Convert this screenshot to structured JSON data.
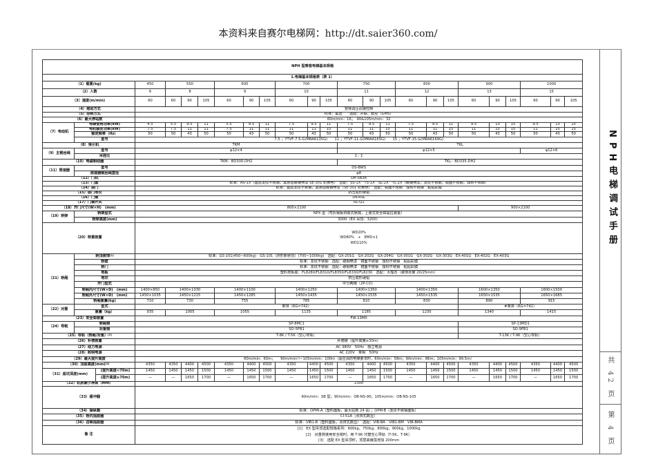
{
  "header_note": "本资料来自赛尔电梯网：http://dt.saier360.com/",
  "side": {
    "title": "NPH电梯调试手册",
    "total_pages": "共 42 页",
    "page": "第 4 页"
  },
  "table": {
    "title": "NPH 型乘客电梯基本规格",
    "section": "1.电梯基本规格表（表 1）"
  },
  "rows": {
    "r1": {
      "label": "（1）载重(kg)",
      "values": [
        "450",
        "550",
        "600",
        "700",
        "750",
        "800",
        "900",
        "1000"
      ]
    },
    "r2": {
      "label": "（2）人数",
      "values": [
        "6",
        "8",
        "9",
        "10",
        "11",
        "12",
        "13",
        "15"
      ]
    },
    "r3": {
      "label": "（3）速度(m/min)",
      "values": [
        "60",
        "60",
        "90",
        "105",
        "60",
        "90",
        "105",
        "60",
        "90",
        "105",
        "60",
        "90",
        "105",
        "60",
        "90",
        "105",
        "60",
        "90",
        "105",
        "60",
        "90",
        "105"
      ]
    },
    "r4": {
      "label": "（4）拖动方式",
      "value": "变频调压调速控制"
    },
    "r5": {
      "label": "（5）控制方式",
      "value": "标准：集选　　选配：并联、群控（GMS）"
    },
    "r6": {
      "label": "（6）最大停站数",
      "value": "60m/min：16；　90&105m/min：32"
    },
    "r7": {
      "label": "（7）电动机",
      "sub": [
        {
          "label": "电梯使用功率(kW)",
          "values": [
            "4.5",
            "5.5",
            "9.5",
            "11",
            "5.5",
            "9.5",
            "11",
            "7.5",
            "9.5",
            "11",
            "7.5",
            "9.5",
            "11",
            "7.5",
            "9.5",
            "11",
            "9.5",
            "13",
            "15",
            "9.5",
            "13",
            "15"
          ]
        },
        {
          "label": "电机额定功率(kW)",
          "values": [
            "7.5",
            "7.5",
            "11",
            "11",
            "7.5",
            "11",
            "11",
            "11",
            "11",
            "15",
            "11",
            "11",
            "15",
            "11",
            "11",
            "15",
            "11",
            "15",
            "15",
            "11",
            "15",
            "15"
          ]
        },
        {
          "label": "额定频率（Hz）",
          "values": [
            "50",
            "50",
            "43",
            "50",
            "50",
            "43",
            "50",
            "50",
            "43",
            "50",
            "50",
            "43",
            "50",
            "50",
            "43",
            "50",
            "50",
            "43",
            "50",
            "50",
            "43",
            "50"
          ]
        },
        {
          "label": "型号",
          "value": "7.5 ；YTVF-7.5-G(MRA6135G)　　11 ；YTVF-11-G(MRA6165G)　　15 ；YTVF-15-G(MRA6169G)"
        }
      ]
    },
    "r8": {
      "label": "（8）曳引机",
      "values": [
        "TKM",
        "TKL"
      ]
    },
    "r9": {
      "label": "（9）主钢丝绳",
      "sub": [
        {
          "label": "型号",
          "values": [
            "φ12×4",
            "φ12×5",
            "φ12×6"
          ]
        },
        {
          "label": "吊挂比",
          "value": "1 : 1"
        }
      ]
    },
    "r10": {
      "label": "（10）电磁制动器",
      "values": [
        "TKM：BD300-DH2",
        "TKL：BD335-DH2"
      ]
    },
    "r11": {
      "label": "（11）限速器",
      "sub": [
        {
          "label": "型号",
          "value": "DS-BWS"
        },
        {
          "label": "限速器钢丝绳直径",
          "value": "φ8"
        }
      ]
    },
    "r12": {
      "label": "（12）门机",
      "value": "LM-SB3A"
    },
    "r13": {
      "label": "（13）门套",
      "value": "标准：AS-1X（首层发纹不锈钢，其余层碳钢喷漆 SE-301 奶黄色）　选配：SS-1X　TS-1X　SL-2X　TL-2X（碳钢喷漆，发纹不锈钢，镜面不锈钢，蚀刻不锈钢）"
    },
    "r14": {
      "label": "（14）层门",
      "value": "标准：首层发纹不锈钢，其余层碳钢喷漆（SE-301 奶黄色）　选配：镜面不锈钢　蚀刻不锈钢　粘贴彩膜"
    },
    "r15": {
      "label": "（15）层门地坎",
      "value": "挤压成形硬铝"
    },
    "r16": {
      "label": "（16）门锁",
      "value": "DK-RSL"
    },
    "r17": {
      "label": "（17）门锁开关",
      "value": "UL-Q1"
    },
    "r18": {
      "label": "（18）开门尺寸(W×H)　(mm)",
      "values": [
        "800×2100",
        "900×2100"
      ]
    },
    "r19": {
      "label": "（19）轿架",
      "sub": [
        {
          "label": "轿架型式",
          "value": "NPX 型（弯折钢板拼装式轿底，上装式安全钳提拉装置）"
        },
        {
          "label": "轿架高度(mm)",
          "value": "3000（EX 吊顶：3200）"
        }
      ]
    },
    "r20": {
      "label": "（20）称重装置",
      "lines": [
        "WD20%",
        "WD80%　+　EMD×1",
        "WD110%"
      ]
    },
    "r21": {
      "label": "（21）轿厢",
      "sub": [
        {
          "label": "轿顶装饰",
          "sup": "[1]",
          "value": "标准：GS-101(450~600kg)　GS-101（拱形新轿顶）(700~1000kg)　选配：GX-201G　GX-202G　GX-204G　GX-301G　GX-302G　GX-303G　EX-401G　EX-402G　EX-403G"
        },
        {
          "label": "轿壁",
          "value": "标准：发纹不锈钢　选配：碳钢喷漆　镜面不锈钢　蚀刻不锈钢　粘贴彩膜"
        },
        {
          "label": "轿门",
          "value": "标准：发纹不锈钢　选配：碳钢喷漆　镜面不锈钢　蚀刻不锈钢　粘贴彩膜"
        },
        {
          "label": "地板",
          "value": "塑料地板胶：FL8280/FL8310/FL8350/FL8330/FL8230　选配：大理石（装饰厚度 20/25mm）"
        },
        {
          "label": "地坎",
          "value": "挤压成形硬铝"
        },
        {
          "label": "开门型式",
          "value": "中分两扇（2P-CO）"
        },
        {
          "label": "轿厢内尺寸(W×D)　(mm)",
          "values": [
            "1400×850",
            "1400×1030",
            "1400×1100",
            "1400×1250",
            "1400×1350",
            "1400×1350",
            "1600×1350",
            "1600×1500"
          ]
        },
        {
          "label": "轿厢外尺寸(W×D)　(mm)",
          "values": [
            "1450×1035",
            "1450×1215",
            "1450×1285",
            "1450×1435",
            "1450×1535",
            "1450×1535",
            "1650×1535",
            "1650×1685"
          ]
        },
        {
          "label": "轿厢重量(kg)",
          "values": [
            "710",
            "730",
            "755",
            "785",
            "810",
            "830",
            "890",
            "915"
          ]
        }
      ]
    },
    "r22": {
      "label": "（22）对重",
      "sub": [
        {
          "label": "型式",
          "values": [
            "单排（RG=742）",
            "#单排（RG=742）"
          ]
        },
        {
          "label": "重量（kg）",
          "values": [
            "935",
            "1005",
            "1055",
            "1135",
            "1185",
            "1230",
            "1340",
            "1415"
          ]
        }
      ]
    },
    "r23": {
      "label": "（23）安全钳装置",
      "value": "FW-13MX"
    },
    "r24": {
      "label": "（24）导靴",
      "sub": [
        {
          "label": "轿厢侧",
          "values": [
            "SP-8MC1",
            "SP-13MD1"
          ]
        },
        {
          "label": "对重侧",
          "values": [
            "SO-5FB1",
            "SO-9FB1"
          ]
        }
      ]
    },
    "r25": {
      "label": "（25）导轨（轿厢/对重）",
      "sup": "[2]",
      "values": [
        "T-8K / T-5K（空心导轨）",
        "T-13K / T-9K（空心导轨）"
      ]
    },
    "r26": {
      "label": "（26）补偿装置",
      "value": "补偿链（提升高度≥30m）"
    },
    "r27": {
      "label": "（27）动力电源",
      "value": "AC 380V　50Hz　独立电源"
    },
    "r28": {
      "label": "（28）照明电源",
      "value": "AC 220V　单相　50Hz"
    },
    "r29": {
      "label": "（29）最大提升高度",
      "value_a": "60m/min：60m；　　90m/min",
      "sup": "[2]",
      "value_b": "~105m/min：100m（适应消防电梯要求时，60m/min：58m；90m/min：86m；105m/min：99.5m）"
    },
    "r30": {
      "label": "（30）顶层高度(mm)",
      "sup": "[3]",
      "values": [
        "4350",
        "4350",
        "4400",
        "4500",
        "4350",
        "4400",
        "4500",
        "4350",
        "4400",
        "4500",
        "4350",
        "4400",
        "4500",
        "4350",
        "4400",
        "4500",
        "4350",
        "4400",
        "4500",
        "4350",
        "4400",
        "4500"
      ]
    },
    "r31": {
      "label": "（31）底坑深度(mm)",
      "sub": [
        {
          "label": "(提升高度<70m)",
          "values": [
            "1450",
            "1450",
            "1450",
            "1500",
            "1450",
            "1450",
            "1500",
            "1450",
            "1450",
            "1500",
            "1450",
            "1450",
            "1500",
            "1450",
            "1450",
            "1500",
            "1450",
            "1450",
            "1500",
            "1450",
            "1450",
            "1500"
          ]
        },
        {
          "label": "(提升高度≥70m)",
          "values": [
            "—",
            "—",
            "1650",
            "1700",
            "—",
            "1650",
            "1700",
            "—",
            "1650",
            "1700",
            "—",
            "1650",
            "1700",
            "—",
            "1650",
            "1700",
            "—",
            "1650",
            "1700",
            "—",
            "1650",
            "1700"
          ]
        }
      ]
    },
    "r32": {
      "label": "（32）机房最小净高（mm）",
      "value": "2300"
    },
    "r33": {
      "label": "（33）缓冲器",
      "value": "60m/min：SB 型；90m/min：OB-NS-90；105m/min：OB-NS-105"
    },
    "r34": {
      "label": "（34）操纵箱",
      "value": "标准：OPMI-A（塑料面板，最大站数 24 站）；OPM-B（发纹不锈钢面板）"
    },
    "r35": {
      "label": "（35）轿内指层器",
      "value": "CI-51A（点阵式数显）"
    },
    "r36": {
      "label": "（36）召唤指层器",
      "value": "标准：VIB1-B（塑料面板，点阵式数显）　选配：VIB-BA　VIB1-BM　VIB-BMA"
    },
    "notes": {
      "label": "备 注",
      "lines": [
        "[1]　EX 型吊顶选配规格系列：600kg、750kg、800kg、900kg、1000kg",
        "[2]　对重侧使用安全钳时，用 T-9K 代替空心导轨（T-5K、T-9K）",
        "[3]　选配 EX 型吊顶时，顶层高度需增加 200mm"
      ]
    }
  }
}
